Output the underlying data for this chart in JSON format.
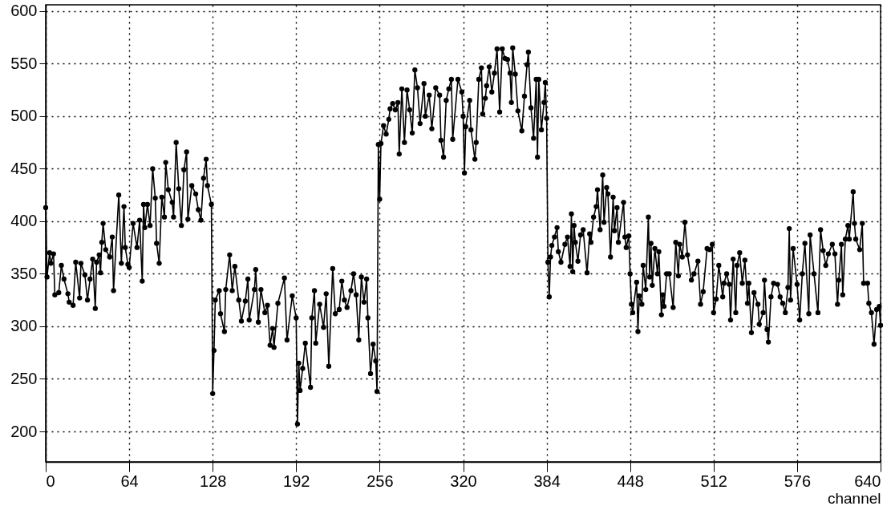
{
  "chart_data": {
    "type": "line",
    "xlabel": "channel",
    "x": [
      0,
      1,
      3,
      4,
      6,
      7,
      10,
      12,
      14,
      17,
      18,
      21,
      23,
      26,
      27,
      30,
      32,
      34,
      36,
      38,
      39,
      41,
      42,
      43,
      44,
      46,
      49,
      51,
      52,
      56,
      58,
      60,
      61,
      63,
      64,
      67,
      70,
      72,
      74,
      75,
      76,
      78,
      80,
      82,
      84,
      85,
      87,
      89,
      91,
      92,
      94,
      97,
      98,
      100,
      102,
      104,
      106,
      108,
      109,
      112,
      115,
      117,
      119,
      121,
      123,
      124,
      127,
      128,
      129,
      130,
      133,
      134,
      137,
      138,
      141,
      143,
      145,
      148,
      150,
      153,
      155,
      156,
      160,
      161,
      163,
      165,
      168,
      170,
      172,
      174,
      175,
      178,
      183,
      185,
      189,
      192,
      193,
      194,
      195,
      197,
      199,
      203,
      204,
      206,
      207,
      210,
      213,
      215,
      217,
      220,
      222,
      225,
      227,
      229,
      231,
      234,
      236,
      238,
      240,
      242,
      244,
      246,
      247,
      249,
      251,
      253,
      254,
      255,
      256,
      257,
      259,
      261,
      263,
      264,
      266,
      268,
      270,
      271,
      273,
      275,
      277,
      279,
      281,
      283,
      285,
      287,
      290,
      291,
      294,
      296,
      299,
      302,
      303,
      305,
      307,
      309,
      311,
      312,
      316,
      319,
      320,
      321,
      322,
      325,
      326,
      329,
      330,
      332,
      334,
      335,
      337,
      338,
      340,
      342,
      344,
      346,
      348,
      350,
      352,
      354,
      356,
      357,
      358,
      360,
      362,
      365,
      367,
      369,
      370,
      372,
      374,
      376,
      377,
      378,
      380,
      382,
      383,
      384,
      385,
      386,
      387,
      388,
      390,
      392,
      393,
      395,
      398,
      400,
      402,
      403,
      404,
      405,
      406,
      408,
      410,
      412,
      415,
      417,
      418,
      420,
      422,
      423,
      425,
      427,
      428,
      430,
      431,
      433,
      435,
      436,
      438,
      439,
      443,
      444,
      445,
      447,
      448,
      449,
      450,
      453,
      454,
      455,
      457,
      458,
      460,
      462,
      463,
      464,
      465,
      467,
      469,
      470,
      472,
      473,
      474,
      476,
      478,
      481,
      483,
      485,
      486,
      488,
      490,
      492,
      495,
      497,
      500,
      502,
      504,
      507,
      509,
      511,
      512,
      514,
      516,
      519,
      520,
      522,
      524,
      525,
      527,
      529,
      530,
      532,
      534,
      536,
      538,
      539,
      541,
      543,
      546,
      547,
      550,
      551,
      553,
      554,
      556,
      558,
      561,
      563,
      565,
      567,
      569,
      570,
      571,
      573,
      576,
      578,
      580,
      582,
      585,
      586,
      589,
      592,
      594,
      596,
      598,
      600,
      603,
      605,
      607,
      608,
      610,
      611,
      613,
      615,
      616,
      619,
      620,
      621,
      624,
      626,
      627,
      630,
      631,
      633,
      635,
      637,
      639,
      640
    ],
    "series": [
      {
        "color": "#000000",
        "values": [
          413,
          347,
          370,
          360,
          369,
          330,
          332,
          358,
          345,
          331,
          323,
          320,
          361,
          327,
          360,
          349,
          325,
          345,
          364,
          317,
          361,
          368,
          351,
          380,
          398,
          373,
          366,
          385,
          334,
          425,
          360,
          414,
          375,
          359,
          356,
          398,
          375,
          401,
          343,
          416,
          394,
          416,
          396,
          450,
          422,
          379,
          360,
          423,
          404,
          456,
          430,
          418,
          404,
          475,
          431,
          396,
          449,
          466,
          402,
          434,
          426,
          411,
          401,
          441,
          459,
          434,
          416,
          236,
          277,
          325,
          334,
          312,
          295,
          335,
          368,
          334,
          357,
          325,
          305,
          324,
          345,
          306,
          335,
          354,
          304,
          335,
          313,
          320,
          282,
          298,
          280,
          322,
          346,
          287,
          329,
          308,
          207,
          265,
          239,
          260,
          284,
          242,
          308,
          334,
          284,
          321,
          299,
          331,
          262,
          355,
          312,
          316,
          343,
          325,
          318,
          334,
          350,
          330,
          287,
          347,
          323,
          345,
          308,
          255,
          283,
          267,
          238,
          473,
          421,
          474,
          491,
          483,
          497,
          507,
          512,
          506,
          513,
          464,
          526,
          475,
          525,
          506,
          484,
          544,
          527,
          493,
          531,
          500,
          520,
          488,
          527,
          520,
          477,
          461,
          515,
          526,
          535,
          478,
          535,
          523,
          500,
          446,
          490,
          515,
          487,
          459,
          475,
          535,
          546,
          502,
          517,
          529,
          547,
          523,
          541,
          564,
          504,
          564,
          555,
          554,
          541,
          513,
          565,
          540,
          505,
          486,
          519,
          549,
          561,
          508,
          479,
          535,
          461,
          535,
          487,
          513,
          532,
          498,
          361,
          328,
          366,
          377,
          385,
          394,
          371,
          361,
          378,
          385,
          357,
          407,
          352,
          396,
          380,
          362,
          387,
          392,
          351,
          388,
          380,
          404,
          414,
          430,
          392,
          444,
          399,
          432,
          426,
          366,
          423,
          391,
          413,
          380,
          418,
          385,
          375,
          386,
          350,
          321,
          313,
          342,
          295,
          329,
          321,
          358,
          335,
          404,
          347,
          379,
          339,
          374,
          350,
          371,
          311,
          330,
          319,
          350,
          350,
          318,
          380,
          348,
          378,
          366,
          399,
          368,
          344,
          350,
          362,
          321,
          333,
          374,
          373,
          378,
          313,
          326,
          358,
          328,
          341,
          350,
          340,
          306,
          364,
          313,
          358,
          370,
          341,
          363,
          322,
          341,
          294,
          332,
          321,
          302,
          313,
          344,
          297,
          285,
          328,
          341,
          340,
          328,
          322,
          313,
          337,
          393,
          325,
          374,
          340,
          306,
          350,
          379,
          312,
          387,
          350,
          313,
          392,
          372,
          358,
          369,
          378,
          369,
          321,
          344,
          378,
          330,
          383,
          396,
          383,
          428,
          398,
          383,
          373,
          398,
          341,
          341,
          322,
          313,
          283,
          316,
          319,
          301
        ]
      }
    ],
    "xlim": [
      0,
      640
    ],
    "xticks": [
      0,
      64,
      128,
      192,
      256,
      320,
      384,
      448,
      512,
      576,
      640
    ],
    "ylim": [
      171,
      606
    ],
    "yticks": [
      200,
      250,
      300,
      350,
      400,
      450,
      500,
      550,
      600
    ],
    "grid": true,
    "marker": "circle",
    "line_style": "solid"
  }
}
